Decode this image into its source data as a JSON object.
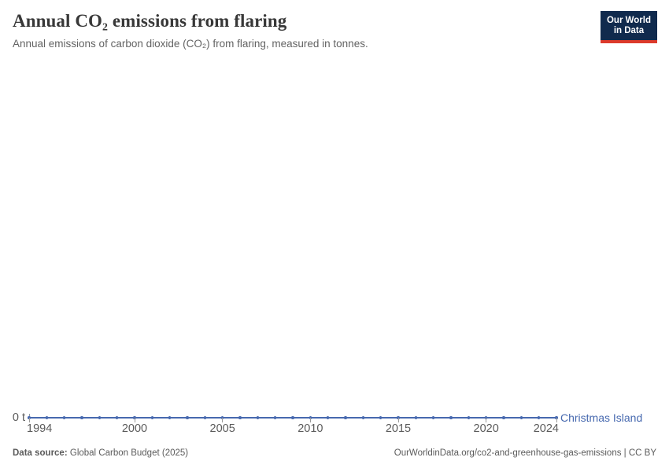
{
  "header": {
    "title": "Annual CO₂ emissions from flaring",
    "subtitle": "Annual emissions of carbon dioxide (CO₂) from flaring, measured in tonnes.",
    "logo": {
      "line1": "Our World",
      "line2": "in Data",
      "bg_color": "#102A4D",
      "accent_color": "#DC3A2B"
    }
  },
  "chart_data": {
    "type": "line",
    "title": "Annual CO₂ emissions from flaring",
    "xlabel": "",
    "ylabel": "tonnes",
    "grid": false,
    "legend_position": "end-of-line label",
    "xlim": [
      1994,
      2024
    ],
    "ylim": [
      0,
      0
    ],
    "y_zero_label": "0 t",
    "x_ticks": [
      1994,
      2000,
      2005,
      2010,
      2015,
      2020,
      2024
    ],
    "x": [
      1994,
      1995,
      1996,
      1997,
      1998,
      1999,
      2000,
      2001,
      2002,
      2003,
      2004,
      2005,
      2006,
      2007,
      2008,
      2009,
      2010,
      2011,
      2012,
      2013,
      2014,
      2015,
      2016,
      2017,
      2018,
      2019,
      2020,
      2021,
      2022,
      2023,
      2024
    ],
    "series": [
      {
        "name": "Christmas Island",
        "color": "#4769AF",
        "values": [
          0,
          0,
          0,
          0,
          0,
          0,
          0,
          0,
          0,
          0,
          0,
          0,
          0,
          0,
          0,
          0,
          0,
          0,
          0,
          0,
          0,
          0,
          0,
          0,
          0,
          0,
          0,
          0,
          0,
          0,
          0
        ]
      }
    ]
  },
  "footer": {
    "source_label": "Data source:",
    "source_value": "Global Carbon Budget (2025)",
    "link_text": "OurWorldinData.org/co2-and-greenhouse-gas-emissions | CC BY"
  }
}
